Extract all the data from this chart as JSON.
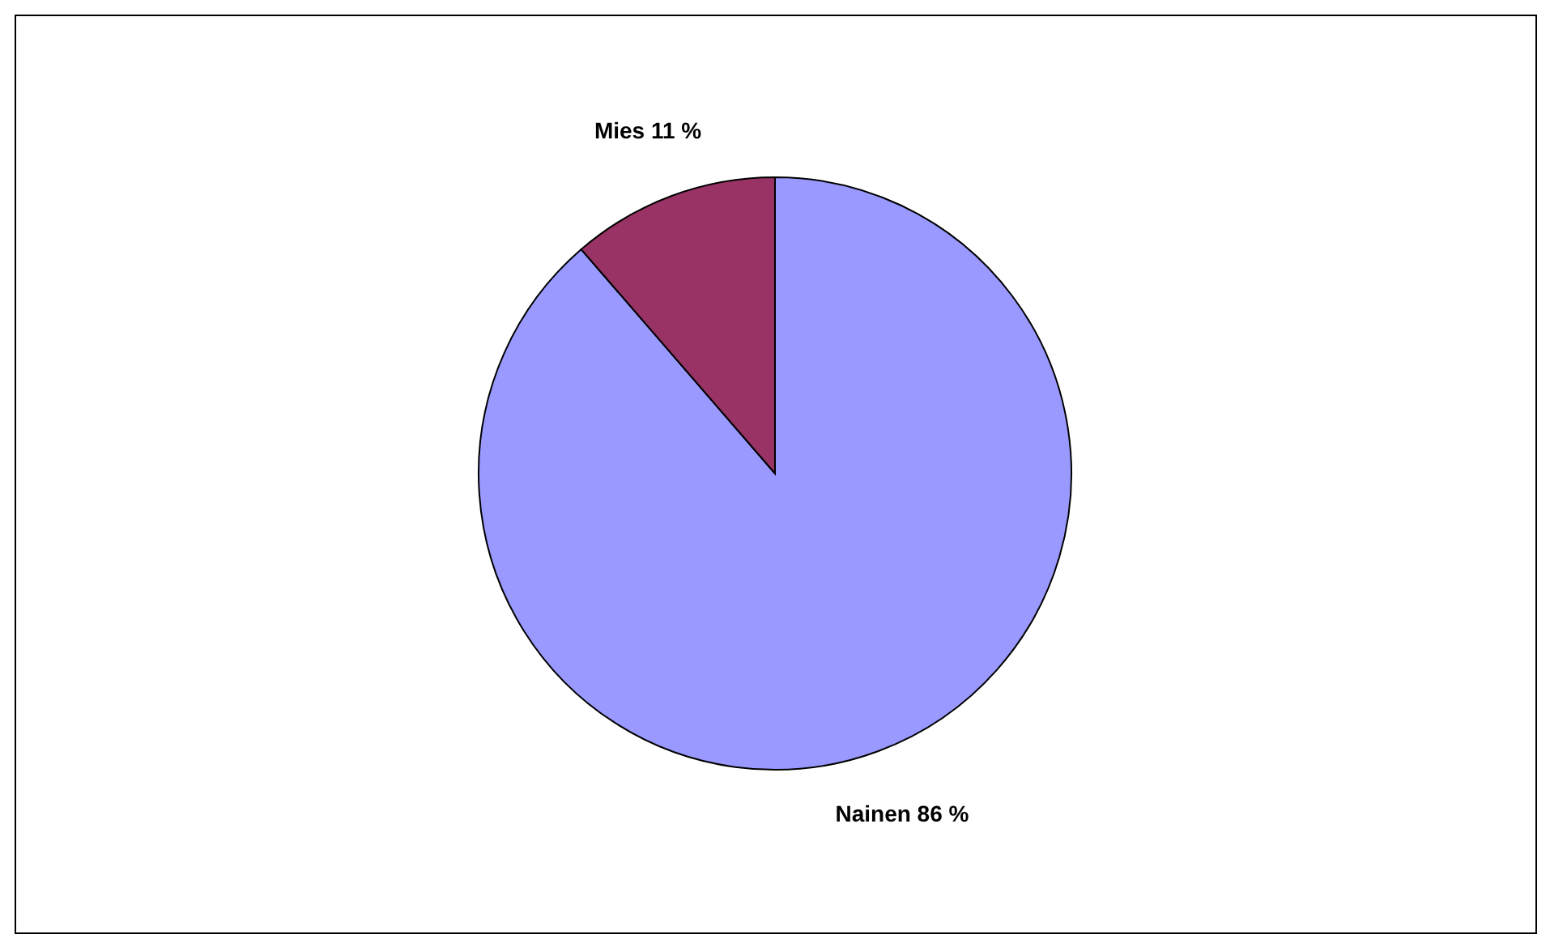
{
  "chart_data": {
    "type": "pie",
    "categories": [
      "Nainen",
      "Mies"
    ],
    "values": [
      86,
      11
    ],
    "colors": [
      "#9999ff",
      "#993366"
    ],
    "value_labels": [
      "86 %",
      "11 %"
    ]
  }
}
